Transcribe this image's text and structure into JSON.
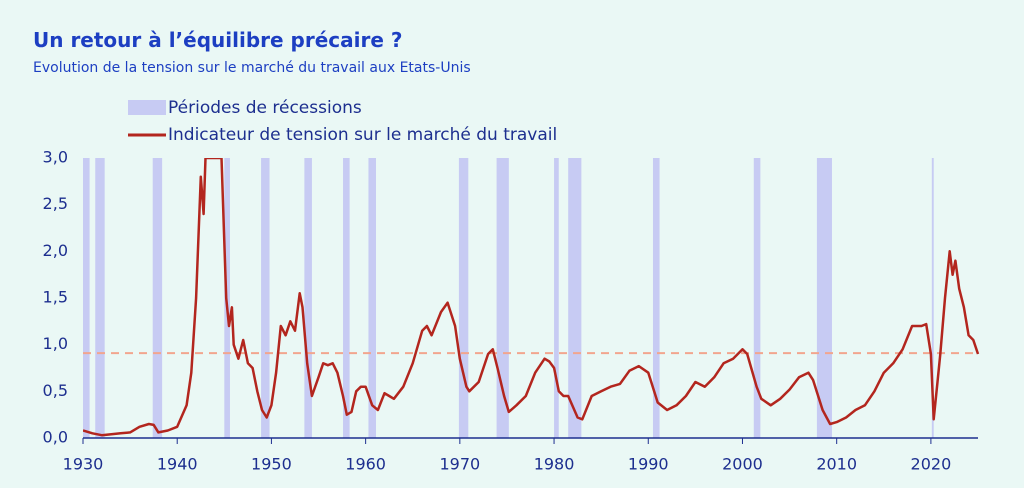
{
  "chart_data": {
    "type": "line",
    "title": "Un retour à l’équilibre précaire ?",
    "subtitle": "Evolution de la tension sur le marché du travail aux Etats-Unis",
    "xlim": [
      1930,
      2025
    ],
    "ylim": [
      0,
      3
    ],
    "xticks": [
      1930,
      1940,
      1950,
      1960,
      1970,
      1980,
      1990,
      2000,
      2010,
      2020
    ],
    "yticks": [
      {
        "value": 0,
        "label": "0,0"
      },
      {
        "value": 0.5,
        "label": "0,5"
      },
      {
        "value": 1,
        "label": "1,0"
      },
      {
        "value": 1.5,
        "label": "1,5"
      },
      {
        "value": 2,
        "label": "2,0"
      },
      {
        "value": 2.5,
        "label": "2,5"
      },
      {
        "value": 3,
        "label": "3,0"
      }
    ],
    "recessions": {
      "name": "Périodes de récessions",
      "color": "#c7cbf3",
      "periods": [
        [
          1929.9,
          1930.7
        ],
        [
          1931.3,
          1932.3
        ],
        [
          1937.4,
          1938.4
        ],
        [
          1945.0,
          1945.6
        ],
        [
          1948.9,
          1949.8
        ],
        [
          1953.5,
          1954.3
        ],
        [
          1957.6,
          1958.3
        ],
        [
          1960.3,
          1961.1
        ],
        [
          1969.9,
          1970.9
        ],
        [
          1973.9,
          1975.2
        ],
        [
          1980.0,
          1980.5
        ],
        [
          1981.5,
          1982.9
        ],
        [
          1990.5,
          1991.2
        ],
        [
          2001.2,
          2001.9
        ],
        [
          2007.9,
          2009.5
        ],
        [
          2020.1,
          2020.3
        ]
      ]
    },
    "reference_line": {
      "value": 0.91,
      "color": "#f2a58e"
    },
    "series": [
      {
        "name": "Indicateur de tension sur le marché du travail",
        "color": "#b3261e",
        "x": [
          1930,
          1931,
          1932,
          1933,
          1934,
          1935,
          1936,
          1937,
          1937.5,
          1938,
          1939,
          1940,
          1941,
          1941.5,
          1942,
          1942.5,
          1942.8,
          1943,
          1944.7,
          1945.2,
          1945.5,
          1945.8,
          1946,
          1946.5,
          1947,
          1947.5,
          1948,
          1948.5,
          1949,
          1949.5,
          1950,
          1950.5,
          1951,
          1951.5,
          1952,
          1952.5,
          1953,
          1953.3,
          1953.8,
          1954.3,
          1955,
          1955.5,
          1956,
          1956.5,
          1957,
          1957.6,
          1958,
          1958.5,
          1959,
          1959.5,
          1960,
          1960.7,
          1961.3,
          1962,
          1962.5,
          1963,
          1964,
          1965,
          1966,
          1966.5,
          1967,
          1968,
          1968.7,
          1969.5,
          1970,
          1970.7,
          1971,
          1972,
          1973,
          1973.5,
          1974,
          1974.7,
          1975.2,
          1976,
          1977,
          1978,
          1979,
          1979.5,
          1980,
          1980.5,
          1981,
          1981.5,
          1982.5,
          1983,
          1984,
          1985,
          1986,
          1987,
          1988,
          1989,
          1990,
          1991,
          1992,
          1993,
          1994,
          1995,
          1996,
          1997,
          1998,
          1999,
          2000,
          2000.5,
          2001.5,
          2002,
          2003,
          2004,
          2005,
          2006,
          2007,
          2007.5,
          2008.5,
          2009.3,
          2010,
          2011,
          2012,
          2013,
          2014,
          2015,
          2016,
          2017,
          2018,
          2019,
          2019.5,
          2020,
          2020.3,
          2020.7,
          2021,
          2021.5,
          2022,
          2022.3,
          2022.6,
          2023,
          2023.5,
          2024,
          2024.5,
          2025
        ],
        "values": [
          0.08,
          0.05,
          0.03,
          0.04,
          0.05,
          0.06,
          0.12,
          0.15,
          0.14,
          0.06,
          0.08,
          0.12,
          0.35,
          0.7,
          1.5,
          2.8,
          2.4,
          3.0,
          3.0,
          1.5,
          1.2,
          1.4,
          1.0,
          0.85,
          1.05,
          0.8,
          0.75,
          0.5,
          0.3,
          0.22,
          0.35,
          0.7,
          1.2,
          1.1,
          1.25,
          1.15,
          1.55,
          1.4,
          0.8,
          0.45,
          0.65,
          0.8,
          0.78,
          0.8,
          0.7,
          0.45,
          0.25,
          0.28,
          0.5,
          0.55,
          0.55,
          0.35,
          0.3,
          0.48,
          0.45,
          0.42,
          0.55,
          0.8,
          1.15,
          1.2,
          1.1,
          1.35,
          1.45,
          1.2,
          0.85,
          0.55,
          0.5,
          0.6,
          0.9,
          0.95,
          0.75,
          0.45,
          0.28,
          0.35,
          0.45,
          0.7,
          0.85,
          0.82,
          0.75,
          0.5,
          0.45,
          0.45,
          0.22,
          0.2,
          0.45,
          0.5,
          0.55,
          0.58,
          0.72,
          0.77,
          0.7,
          0.38,
          0.3,
          0.35,
          0.45,
          0.6,
          0.55,
          0.65,
          0.8,
          0.85,
          0.95,
          0.9,
          0.55,
          0.42,
          0.35,
          0.42,
          0.52,
          0.65,
          0.7,
          0.62,
          0.3,
          0.15,
          0.17,
          0.22,
          0.3,
          0.35,
          0.5,
          0.7,
          0.8,
          0.95,
          1.2,
          1.2,
          1.22,
          0.9,
          0.2,
          0.6,
          0.9,
          1.5,
          2.0,
          1.75,
          1.9,
          1.6,
          1.4,
          1.1,
          1.05,
          0.9
        ]
      }
    ]
  }
}
